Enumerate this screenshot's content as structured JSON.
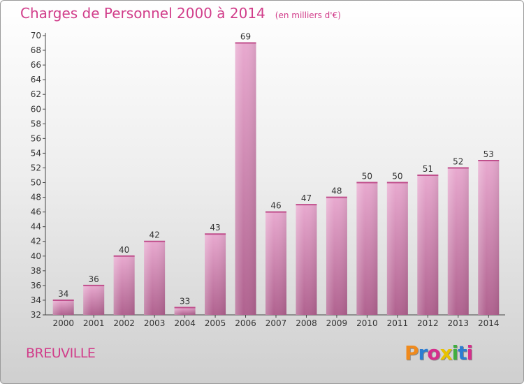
{
  "header": {
    "title": "Charges de Personnel 2000 à 2014",
    "unit": "(en milliers d'€)"
  },
  "footer": {
    "commune": "BREUVILLE"
  },
  "logo": {
    "letters": [
      "P",
      "r",
      "o",
      "x",
      "i",
      "t",
      "i"
    ],
    "colors": [
      "#f08a1c",
      "#2d7dd2",
      "#d62e8c",
      "#e8c200",
      "#3fae3f",
      "#2d7dd2",
      "#d62e8c"
    ]
  },
  "colors": {
    "bar": "#d989b8",
    "accent": "#d13d8a"
  },
  "chart_data": {
    "type": "bar",
    "title": "Charges de Personnel 2000 à 2014",
    "categories": [
      "2000",
      "2001",
      "2002",
      "2003",
      "2004",
      "2005",
      "2006",
      "2007",
      "2008",
      "2009",
      "2010",
      "2011",
      "2012",
      "2013",
      "2014"
    ],
    "values": [
      34,
      36,
      40,
      42,
      33,
      43,
      69,
      46,
      47,
      48,
      50,
      50,
      51,
      52,
      53
    ],
    "ylim": [
      32,
      70
    ],
    "yticks": [
      32,
      34,
      36,
      38,
      40,
      42,
      44,
      46,
      48,
      50,
      52,
      54,
      56,
      58,
      60,
      62,
      64,
      66,
      68,
      70
    ],
    "grid": false,
    "legend": "none"
  }
}
